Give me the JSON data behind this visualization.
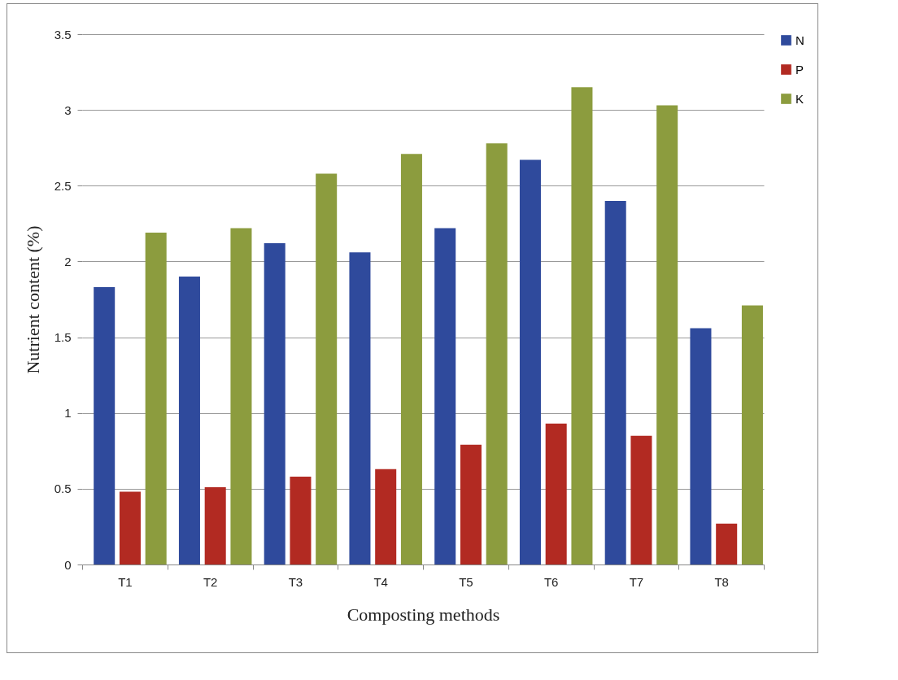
{
  "chart_data": {
    "type": "bar",
    "xlabel": "Composting methods",
    "ylabel": "Nutrient content (%)",
    "categories": [
      "T1",
      "T2",
      "T3",
      "T4",
      "T5",
      "T6",
      "T7",
      "T8"
    ],
    "series": [
      {
        "name": "N",
        "color": "#2f4a9c",
        "values": [
          1.83,
          1.9,
          2.12,
          2.06,
          2.22,
          2.67,
          2.4,
          1.56
        ]
      },
      {
        "name": "P",
        "color": "#b22a22",
        "values": [
          0.48,
          0.51,
          0.58,
          0.63,
          0.79,
          0.93,
          0.85,
          0.27
        ]
      },
      {
        "name": "K",
        "color": "#8c9c3e",
        "values": [
          2.19,
          2.22,
          2.58,
          2.71,
          2.78,
          3.15,
          3.03,
          1.71
        ]
      }
    ],
    "ylim": [
      0,
      3.5
    ],
    "yticks": [
      0,
      0.5,
      1,
      1.5,
      2,
      2.5,
      3,
      3.5
    ],
    "grid": "y",
    "legend": "right"
  }
}
